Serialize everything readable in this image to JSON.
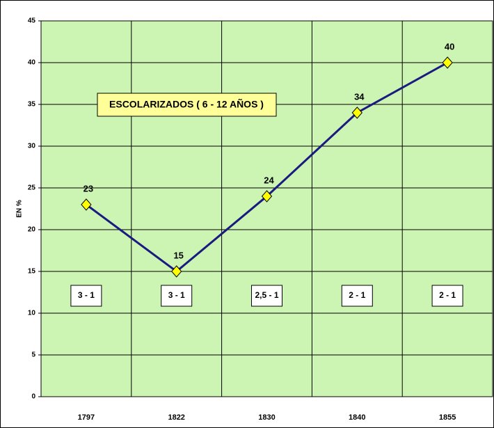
{
  "chart_data": {
    "type": "line",
    "title": "ESCOLARIZADOS ( 6 - 12 AÑOS )",
    "y_label": "EN %",
    "categories": [
      "1797",
      "1822",
      "1830",
      "1840",
      "1855"
    ],
    "values": [
      23,
      15,
      24,
      34,
      40
    ],
    "color": "#1a1a80",
    "marker_color": "#ffff00",
    "annotations": [
      "3 - 1",
      "3 - 1",
      "2,5 - 1",
      "2 - 1",
      "2 - 1"
    ],
    "ylim": [
      0,
      45
    ],
    "yticks": [
      0,
      5,
      10,
      15,
      20,
      25,
      30,
      35,
      40,
      45
    ],
    "grid": true
  }
}
